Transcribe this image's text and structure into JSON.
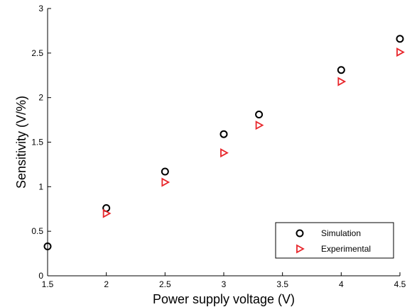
{
  "chart_data": {
    "type": "scatter",
    "title": "",
    "xlabel": "Power supply voltage (V)",
    "ylabel": "Sensitivity (V/%)",
    "xlim": [
      1.5,
      4.5
    ],
    "ylim": [
      0,
      3
    ],
    "xticks": [
      "1.5",
      "2",
      "2.5",
      "3",
      "3.5",
      "4",
      "4.5"
    ],
    "yticks": [
      "0",
      "0.5",
      "1",
      "1.5",
      "2",
      "2.5",
      "3"
    ],
    "grid": false,
    "legend_position": "bottom-right",
    "series": [
      {
        "name": "Simulation",
        "marker": "circle",
        "color": "#000000",
        "x": [
          1.5,
          2,
          2.5,
          3,
          3.3,
          4,
          4.5
        ],
        "y": [
          0.33,
          0.76,
          1.17,
          1.59,
          1.81,
          2.31,
          2.66
        ]
      },
      {
        "name": "Experimental",
        "marker": "triangle-right",
        "color": "#e8262b",
        "x": [
          2,
          2.5,
          3,
          3.3,
          4,
          4.5
        ],
        "y": [
          0.7,
          1.05,
          1.38,
          1.69,
          2.18,
          2.51
        ]
      }
    ]
  }
}
